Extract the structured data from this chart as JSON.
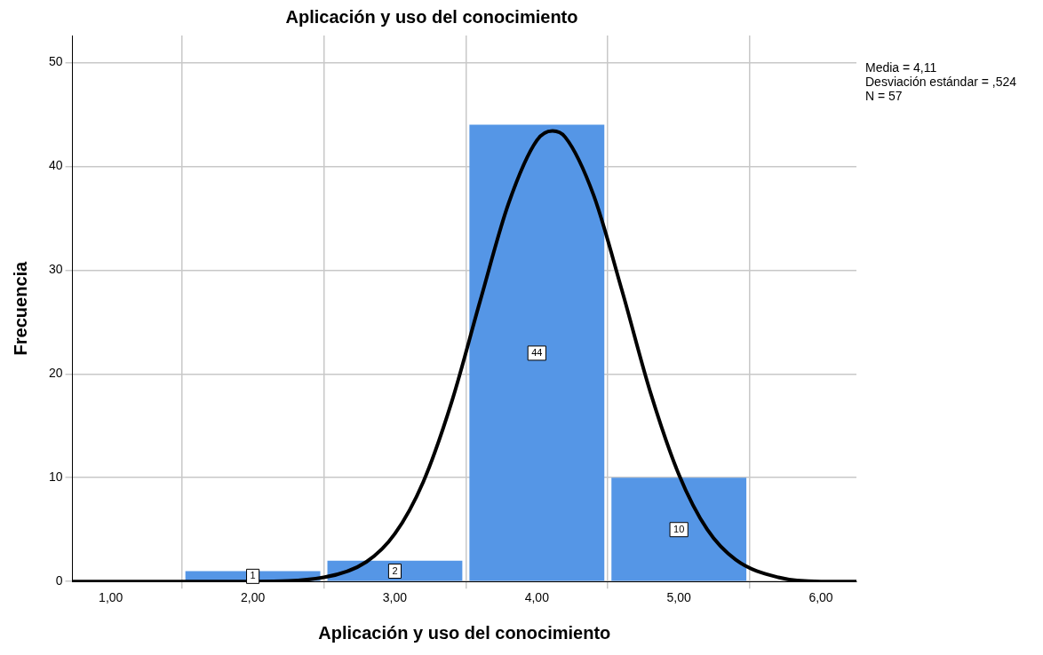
{
  "chart_data": {
    "type": "histogram",
    "title": "Aplicación y uso del conocimiento",
    "xlabel": "Aplicación y uso del conocimiento",
    "ylabel": "Frecuencia",
    "bins": [
      1.5,
      2.5,
      3.5,
      4.5,
      5.5
    ],
    "values": [
      1,
      2,
      44,
      10
    ],
    "color": "#5596e6",
    "value_labels": [
      "1",
      "2",
      "44",
      "10"
    ],
    "series": [
      {
        "type": "line",
        "color": "#000000",
        "marker": "none",
        "x": [
          0.73,
          1.0,
          2.0,
          2.5,
          2.8,
          3.0,
          3.2,
          3.4,
          3.6,
          3.8,
          4.0,
          4.11,
          4.2,
          4.4,
          4.6,
          4.8,
          5.0,
          5.2,
          5.4,
          5.7,
          6.0,
          6.25
        ],
        "values": [
          0,
          0,
          0,
          0.4,
          1.9,
          4.6,
          9.6,
          17.3,
          27.0,
          36.4,
          42.5,
          43.4,
          42.8,
          37.2,
          28.0,
          18.2,
          10.3,
          5.0,
          2.1,
          0.4,
          0,
          0
        ]
      }
    ],
    "xlim": [
      0.73,
      6.25
    ],
    "xticks": [
      {
        "value": 1,
        "label": "1,00"
      },
      {
        "value": 2,
        "label": "2,00"
      },
      {
        "value": 3,
        "label": "3,00"
      },
      {
        "value": 4,
        "label": "4,00"
      },
      {
        "value": 5,
        "label": "5,00"
      },
      {
        "value": 6,
        "label": "6,00"
      }
    ],
    "ylim": [
      0,
      52.6
    ],
    "yticks": [
      0,
      10,
      20,
      30,
      40,
      50
    ],
    "grid": true,
    "legend": false,
    "annotations": [
      "Media = 4,11",
      "Desviación estándar = ,524",
      "N = 57"
    ]
  }
}
